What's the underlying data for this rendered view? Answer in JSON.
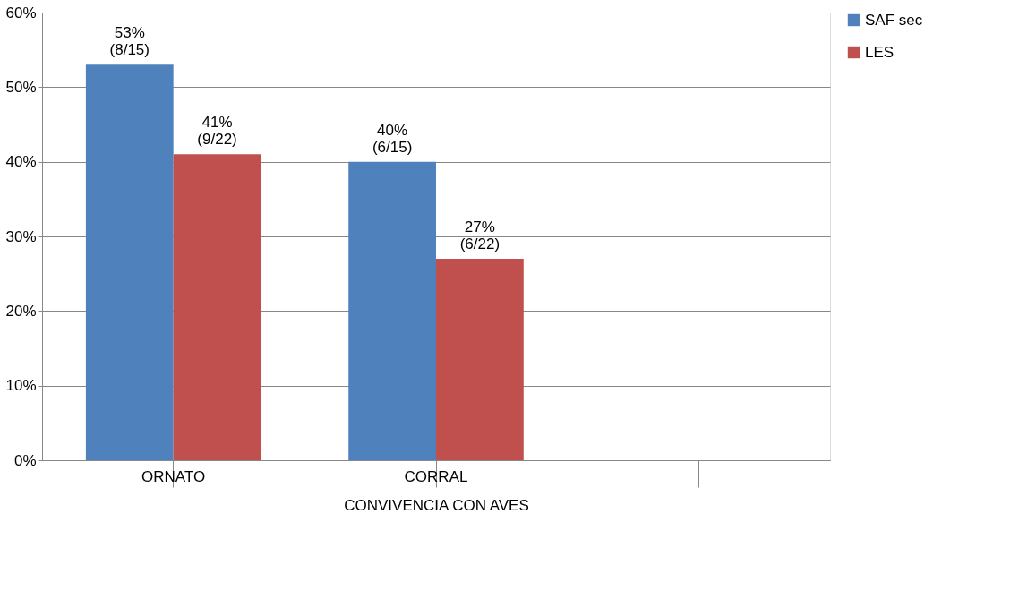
{
  "chart_data": {
    "type": "bar",
    "categories": [
      "ORNATO",
      "CORRAL",
      null
    ],
    "xlabel": "CONVIVENCIA CON AVES",
    "series": [
      {
        "name": "SAF sec",
        "color": "#4f81bd",
        "values": [
          53,
          40,
          null
        ],
        "value_labels": [
          "53%\n(8/15)",
          "40%\n(6/15)",
          null
        ]
      },
      {
        "name": "LES",
        "color": "#c0504d",
        "values": [
          41,
          27,
          null
        ],
        "value_labels": [
          "41%\n(9/22)",
          "27%\n(6/22)",
          null
        ]
      }
    ],
    "ylim": [
      0,
      60
    ],
    "yticks": [
      {
        "value": 0,
        "label": "0%"
      },
      {
        "value": 10,
        "label": "10%"
      },
      {
        "value": 20,
        "label": "20%"
      },
      {
        "value": 30,
        "label": "30%"
      },
      {
        "value": 40,
        "label": "40%"
      },
      {
        "value": 50,
        "label": "50%"
      },
      {
        "value": 60,
        "label": "60%"
      }
    ],
    "grid": "y",
    "legend": "right"
  }
}
